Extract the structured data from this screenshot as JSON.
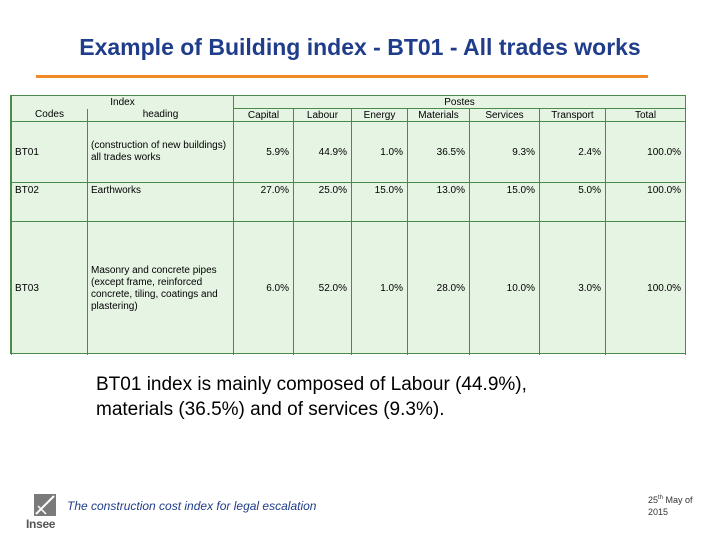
{
  "slide": {
    "title": "Example of Building index - BT01 - All trades works",
    "summary_line1": "BT01 index is mainly composed of Labour (44.9%),",
    "summary_line2": "materials (36.5%) and of services (9.3%).",
    "footer_text": "The construction cost index for legal escalation",
    "footer_date_day": "25",
    "footer_date_suffix": "th",
    "footer_date_rest": " May of",
    "footer_date_year": "2015",
    "logo_text": "Insee",
    "colors": {
      "title": "#1f3d8a",
      "rule": "#f08a24",
      "table_bg": "#e6f4e4",
      "table_border": "#4a8a4a"
    }
  },
  "table": {
    "header_index": "Index",
    "header_postes": "Postes",
    "col_codes": "Codes",
    "col_heading": "heading",
    "col_capital": "Capital",
    "col_labour": "Labour",
    "col_energy": "Energy",
    "col_materials": "Materials",
    "col_services": "Services",
    "col_transport": "Transport",
    "col_total": "Total",
    "rows": [
      {
        "code": "BT01",
        "heading": "(construction of new buildings) all trades works",
        "capital": "5.9%",
        "labour": "44.9%",
        "energy": "1.0%",
        "materials": "36.5%",
        "services": "9.3%",
        "transport": "2.4%",
        "total": "100.0%"
      },
      {
        "code": "BT02",
        "heading": "Earthworks",
        "capital": "27.0%",
        "labour": "25.0%",
        "energy": "15.0%",
        "materials": "13.0%",
        "services": "15.0%",
        "transport": "5.0%",
        "total": "100.0%"
      },
      {
        "code": "BT03",
        "heading": "Masonry and concrete pipes (except frame, reinforced concrete, tiling, coatings and plastering)",
        "capital": "6.0%",
        "labour": "52.0%",
        "energy": "1.0%",
        "materials": "28.0%",
        "services": "10.0%",
        "transport": "3.0%",
        "total": "100.0%"
      }
    ]
  }
}
